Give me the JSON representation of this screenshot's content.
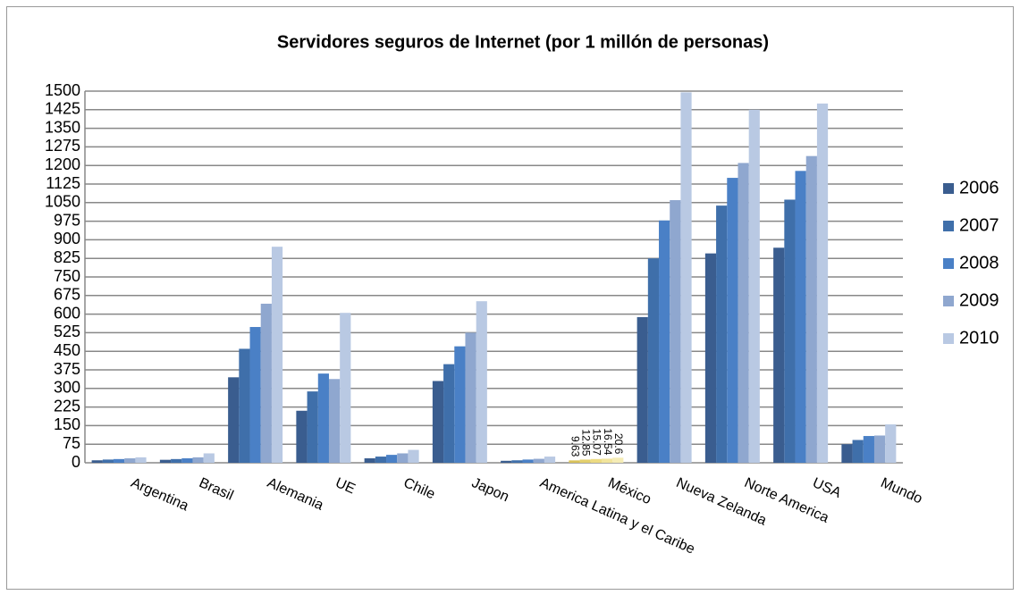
{
  "chart_data": {
    "type": "bar",
    "title": "Servidores seguros de Internet (por 1 millón de personas)",
    "categories": [
      "Argentina",
      "Brasil",
      "Alemania",
      "UE",
      "Chile",
      "Japon",
      "America Latina y el Caribe",
      "México",
      "Nueva Zelanda",
      "Norte America",
      "USA",
      "Mundo"
    ],
    "series": [
      {
        "name": "2006",
        "color": "#3a5d8f",
        "highlight_color": "#d9c25a",
        "values": [
          10,
          12,
          345,
          210,
          18,
          330,
          8,
          9.63,
          588,
          845,
          868,
          75
        ]
      },
      {
        "name": "2007",
        "color": "#3f6faa",
        "highlight_color": "#e3cf6c",
        "values": [
          13,
          15,
          460,
          288,
          25,
          398,
          10,
          12.85,
          825,
          1038,
          1062,
          92
        ]
      },
      {
        "name": "2008",
        "color": "#4a80c6",
        "highlight_color": "#ecdb82",
        "values": [
          15,
          18,
          548,
          360,
          32,
          470,
          13,
          15.07,
          978,
          1150,
          1178,
          108
        ]
      },
      {
        "name": "2009",
        "color": "#8fa7cf",
        "highlight_color": "#f1e49c",
        "values": [
          18,
          22,
          642,
          338,
          38,
          525,
          16,
          16.54,
          1060,
          1210,
          1238,
          110
        ]
      },
      {
        "name": "2010",
        "color": "#b9c9e3",
        "highlight_color": "#f5ecb6",
        "values": [
          22,
          38,
          872,
          605,
          52,
          652,
          25,
          20.6,
          1495,
          1425,
          1450,
          155
        ]
      }
    ],
    "highlight_category": 7,
    "labeled_category": 7,
    "ylim": [
      0,
      1500
    ],
    "yticks": [
      0,
      75,
      150,
      225,
      300,
      375,
      450,
      525,
      600,
      675,
      750,
      825,
      900,
      975,
      1050,
      1125,
      1200,
      1275,
      1350,
      1425,
      1500
    ],
    "grid": true,
    "legend": "right"
  }
}
